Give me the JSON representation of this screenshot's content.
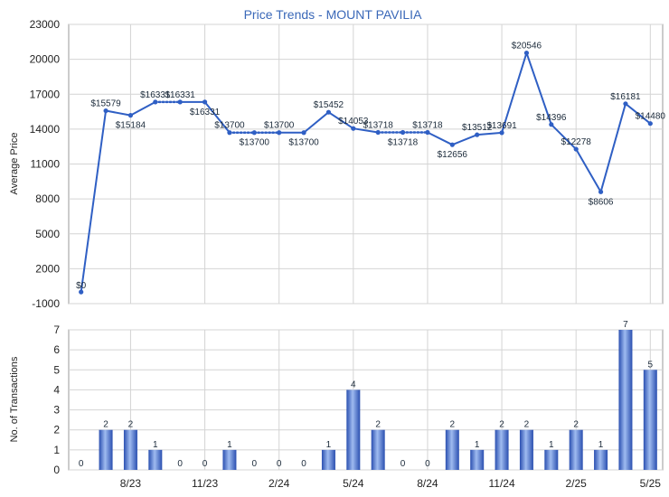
{
  "chart_data": [
    {
      "type": "line",
      "title": "Price Trends - MOUNT PAVILIA",
      "ylabel": "Average Price",
      "ylim": [
        -1000,
        23000
      ],
      "yticks": [
        -1000,
        2000,
        5000,
        8000,
        11000,
        14000,
        17000,
        20000,
        23000
      ],
      "grid": true,
      "x": [
        "6/23",
        "7/23",
        "8/23",
        "9/23",
        "10/23",
        "11/23",
        "12/23",
        "1/24",
        "2/24",
        "3/24",
        "4/24",
        "5/24",
        "6/24",
        "7/24",
        "8/24",
        "9/24",
        "10/24",
        "11/24",
        "12/24",
        "1/25",
        "2/25",
        "3/25",
        "4/25",
        "5/25"
      ],
      "values": [
        0,
        15579,
        15184,
        16331,
        16331,
        16331,
        13700,
        13700,
        13700,
        13700,
        15452,
        14053,
        13718,
        13718,
        13718,
        12656,
        13512,
        13691,
        20546,
        14396,
        12278,
        8606,
        16181,
        14480
      ],
      "labels": [
        "$0",
        "$15579",
        "$15184",
        "$16331",
        "$16331",
        "$16331",
        "$13700",
        "$13700",
        "$13700",
        "$13700",
        "$15452",
        "$14053",
        "$13718",
        "$13718",
        "$13718",
        "$12656",
        "$13512",
        "$13691",
        "$20546",
        "$14396",
        "$12278",
        "$8606",
        "$16181",
        "$14480"
      ],
      "dotted": [
        false,
        false,
        false,
        true,
        true,
        false,
        true,
        true,
        true,
        false,
        false,
        false,
        true,
        true,
        true,
        false,
        false,
        false,
        false,
        false,
        false,
        false,
        false,
        false
      ],
      "color": "#2f5fc4"
    },
    {
      "type": "bar",
      "ylabel": "No. of Transactions",
      "ylim": [
        0,
        7
      ],
      "yticks": [
        0,
        1,
        2,
        3,
        4,
        5,
        6,
        7
      ],
      "grid": true,
      "x": [
        "6/23",
        "7/23",
        "8/23",
        "9/23",
        "10/23",
        "11/23",
        "12/23",
        "1/24",
        "2/24",
        "3/24",
        "4/24",
        "5/24",
        "6/24",
        "7/24",
        "8/24",
        "9/24",
        "10/24",
        "11/24",
        "12/24",
        "1/25",
        "2/25",
        "3/25",
        "4/25",
        "5/25"
      ],
      "values": [
        0,
        2,
        2,
        1,
        0,
        0,
        1,
        0,
        0,
        0,
        1,
        4,
        2,
        0,
        0,
        2,
        1,
        2,
        2,
        1,
        2,
        1,
        7,
        5
      ],
      "xtick_labels": [
        "8/23",
        "11/23",
        "2/24",
        "5/24",
        "8/24",
        "11/24",
        "2/25",
        "5/25"
      ],
      "xtick_index": [
        2,
        5,
        8,
        11,
        14,
        17,
        20,
        23
      ],
      "color": "#2f5fc4"
    }
  ]
}
